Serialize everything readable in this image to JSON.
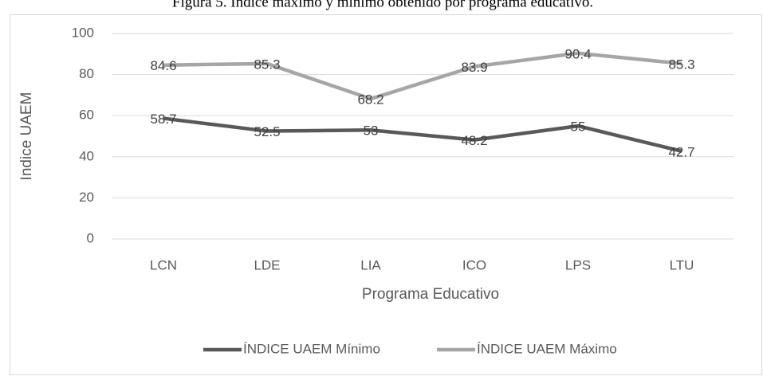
{
  "chart_data": {
    "type": "line",
    "title": "Figura 5. Índice máximo y mínimo obtenido por programa educativo.",
    "x_label": "Programa Educativo",
    "y_label": "Indice UAEM",
    "categories": [
      "LCN",
      "LDE",
      "LIA",
      "ICO",
      "LPS",
      "LTU"
    ],
    "series": [
      {
        "name": "ÍNDICE UAEM Mínimo",
        "color": "#595959",
        "values": [
          58.7,
          52.5,
          53,
          48.2,
          55,
          42.7
        ]
      },
      {
        "name": "ÍNDICE UAEM Máximo",
        "color": "#a6a6a6",
        "values": [
          84.6,
          85.3,
          68.2,
          83.9,
          90.4,
          85.3
        ]
      }
    ],
    "ylim": [
      0,
      100
    ],
    "yticks": [
      0,
      20,
      40,
      60,
      80,
      100
    ],
    "grid": true,
    "legend": "bottom"
  }
}
